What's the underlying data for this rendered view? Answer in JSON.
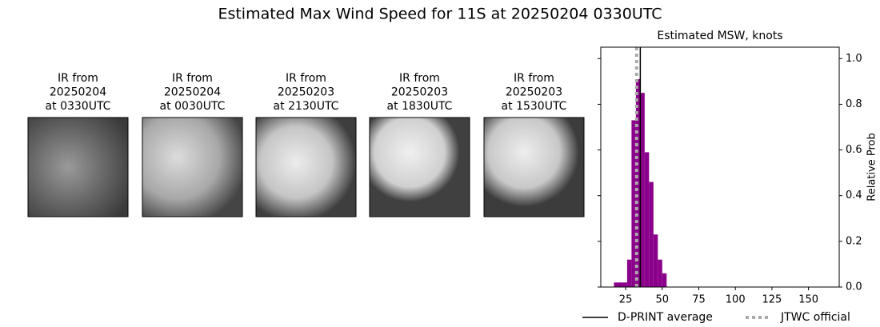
{
  "title": "Estimated Max Wind Speed for 11S at 20250204 0330UTC",
  "panels": [
    {
      "lines": [
        "IR from",
        "20250204",
        "at 0330UTC"
      ]
    },
    {
      "lines": [
        "IR from",
        "20250204",
        "at 0030UTC"
      ]
    },
    {
      "lines": [
        "IR from",
        "20250203",
        "at 2130UTC"
      ]
    },
    {
      "lines": [
        "IR from",
        "20250203",
        "at 1830UTC"
      ]
    },
    {
      "lines": [
        "IR from",
        "20250203",
        "at 1530UTC"
      ]
    }
  ],
  "chart_data": {
    "type": "histogram",
    "title": "Estimated MSW, knots",
    "ylabel": "Relative Prob",
    "bins": [
      17,
      20,
      23,
      26,
      29,
      32,
      35,
      38,
      41,
      44,
      47,
      50,
      53
    ],
    "values": [
      0.02,
      0.02,
      0.02,
      0.12,
      0.73,
      0.91,
      0.85,
      0.59,
      0.46,
      0.23,
      0.12,
      0.06
    ],
    "color": "#8b008b",
    "xlim": [
      8,
      171
    ],
    "ylim": [
      0,
      1.05
    ],
    "xticks": [
      25,
      50,
      75,
      100,
      125,
      150
    ],
    "yticks": [
      {
        "value": 0,
        "label": "0.0"
      },
      {
        "value": 0.2,
        "label": "0.2"
      },
      {
        "value": 0.4,
        "label": "0.4"
      },
      {
        "value": 0.6,
        "label": "0.6"
      },
      {
        "value": 0.8,
        "label": "0.8"
      },
      {
        "value": 1,
        "label": "1.0"
      }
    ],
    "lines": [
      {
        "name": "D-PRINT average",
        "x": 35,
        "color": "#000000",
        "style": "solid"
      },
      {
        "name": "JTWC official",
        "x": 32.5,
        "color": "#aaaaaa",
        "style": "dotted"
      }
    ]
  }
}
